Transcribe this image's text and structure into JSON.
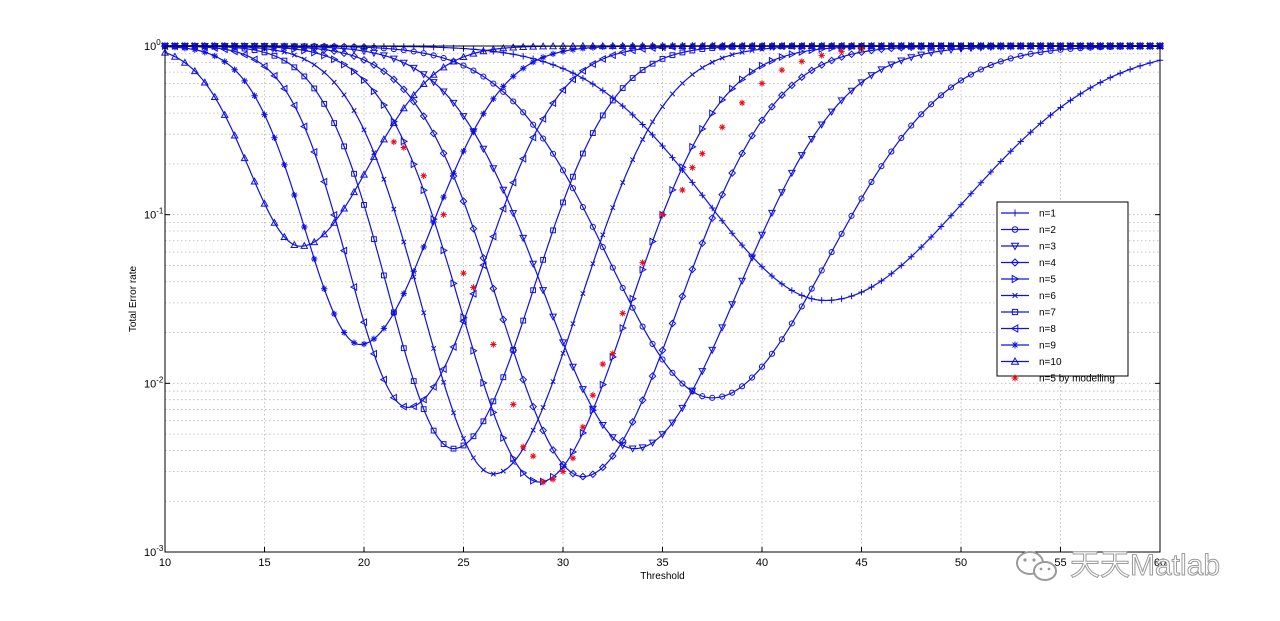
{
  "chart_data": {
    "type": "line",
    "xlabel": "Threshold",
    "ylabel": "Total Error rate",
    "xlim": [
      10,
      60
    ],
    "ylim": [
      0.001,
      1
    ],
    "yscale": "log",
    "grid": true,
    "legend_position": "right",
    "x_ticks": [
      "10",
      "15",
      "20",
      "25",
      "30",
      "35",
      "40",
      "45",
      "50",
      "55",
      "60"
    ],
    "y_ticks": [
      {
        "base": "10",
        "exp": "0"
      },
      {
        "base": "10",
        "exp": "-1"
      },
      {
        "base": "10",
        "exp": "-2"
      },
      {
        "base": "10",
        "exp": "-3"
      }
    ],
    "series": [
      {
        "name": "n=1",
        "marker": "plus",
        "min_x": 43.2,
        "min_y": 0.031,
        "left_width": 6.0,
        "right_width": 7.0
      },
      {
        "name": "n=2",
        "marker": "circle",
        "min_x": 37.5,
        "min_y": 0.0082,
        "left_width": 5.2,
        "right_width": 5.8
      },
      {
        "name": "n=3",
        "marker": "triangle-down",
        "min_x": 33.6,
        "min_y": 0.0041,
        "left_width": 4.6,
        "right_width": 5.2
      },
      {
        "name": "n=4",
        "marker": "diamond",
        "min_x": 31.0,
        "min_y": 0.0028,
        "left_width": 4.2,
        "right_width": 4.8
      },
      {
        "name": "n=5",
        "marker": "triangle-right",
        "min_x": 28.8,
        "min_y": 0.0026,
        "left_width": 3.9,
        "right_width": 4.5
      },
      {
        "name": "n=6",
        "marker": "x",
        "min_x": 26.5,
        "min_y": 0.0029,
        "left_width": 3.6,
        "right_width": 4.3
      },
      {
        "name": "n=7",
        "marker": "square",
        "min_x": 24.5,
        "min_y": 0.0041,
        "left_width": 3.3,
        "right_width": 4.0
      },
      {
        "name": "n=8",
        "marker": "triangle-left",
        "min_x": 22.2,
        "min_y": 0.0072,
        "left_width": 3.0,
        "right_width": 3.8
      },
      {
        "name": "n=9",
        "marker": "star",
        "min_x": 19.8,
        "min_y": 0.017,
        "left_width": 2.8,
        "right_width": 3.6
      },
      {
        "name": "n=10",
        "marker": "triangle-up",
        "min_x": 16.8,
        "min_y": 0.065,
        "left_width": 2.6,
        "right_width": 3.4
      },
      {
        "name": "n=5 by modelling",
        "marker": "red-asterisk",
        "line": false,
        "x": [
          21.5,
          22.0,
          23.0,
          24.0,
          25.0,
          25.5,
          26.5,
          27.5,
          28.0,
          28.5,
          29.0,
          29.5,
          30.0,
          30.5,
          31.0,
          31.5,
          32.0,
          32.5,
          33.0,
          34.0,
          35.0,
          36.0,
          36.5,
          37.0,
          38.0,
          39.0,
          40.0,
          41.0,
          42.0,
          43.0,
          44.0,
          45.0
        ],
        "y": [
          0.27,
          0.25,
          0.17,
          0.1,
          0.045,
          0.037,
          0.017,
          0.0075,
          0.0042,
          0.0037,
          0.0026,
          0.0027,
          0.003,
          0.0036,
          0.0055,
          0.0085,
          0.013,
          0.015,
          0.026,
          0.052,
          0.1,
          0.14,
          0.19,
          0.23,
          0.33,
          0.46,
          0.6,
          0.72,
          0.81,
          0.88,
          0.93,
          0.96
        ]
      }
    ]
  },
  "watermark": {
    "text": "天天Matlab",
    "icon": "wechat-icon"
  }
}
